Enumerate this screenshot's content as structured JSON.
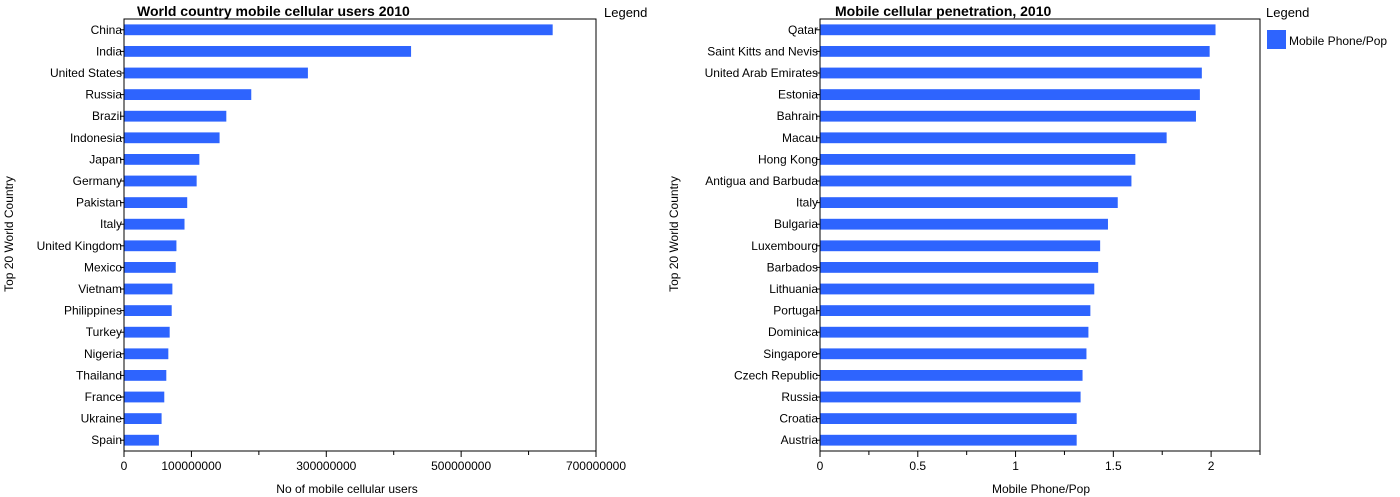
{
  "chart_data": [
    {
      "type": "bar",
      "orientation": "horizontal",
      "title": "World country mobile cellular users 2010",
      "xlabel": "No of mobile cellular users",
      "ylabel": "Top 20 World Country",
      "xlim": [
        0,
        700000000
      ],
      "x_tick_labels": [
        "0",
        "100000000",
        "300000000",
        "500000000",
        "700000000"
      ],
      "legend_title": "Legend",
      "bar_color": "#2e64fe",
      "categories": [
        "China",
        "India",
        "United States",
        "Russia",
        "Brazil",
        "Indonesia",
        "Japan",
        "Germany",
        "Pakistan",
        "Italy",
        "United Kingdom",
        "Mexico",
        "Vietnam",
        "Philippines",
        "Turkey",
        "Nigeria",
        "Thailand",
        "France",
        "Ukraine",
        "Spain"
      ],
      "values": [
        635000000,
        425000000,
        272000000,
        188000000,
        151000000,
        141000000,
        111000000,
        107000000,
        93000000,
        89000000,
        77000000,
        76000000,
        71000000,
        70000000,
        67000000,
        65000000,
        62000000,
        59000000,
        55000000,
        51000000
      ]
    },
    {
      "type": "bar",
      "orientation": "horizontal",
      "title": "Mobile cellular penetration, 2010",
      "xlabel": "Mobile Phone/Pop",
      "ylabel": "Top 20 World Country",
      "xlim": [
        0,
        2.25
      ],
      "x_tick_labels": [
        "0",
        "0.5",
        "1",
        "1.5",
        "2"
      ],
      "legend_title": "Legend",
      "legend_entries": [
        "Mobile Phone/Pop"
      ],
      "bar_color": "#2e64fe",
      "categories": [
        "Qatar",
        "Saint Kitts and Nevis",
        "United Arab Emirates",
        "Estonia",
        "Bahrain",
        "Macau",
        "Hong Kong",
        "Antigua and Barbuda",
        "Italy",
        "Bulgaria",
        "Luxembourg",
        "Barbados",
        "Lithuania",
        "Portugal",
        "Dominica",
        "Singapore",
        "Czech Republic",
        "Russia",
        "Croatia",
        "Austria"
      ],
      "values": [
        2.02,
        1.99,
        1.95,
        1.94,
        1.92,
        1.77,
        1.61,
        1.59,
        1.52,
        1.47,
        1.43,
        1.42,
        1.4,
        1.38,
        1.37,
        1.36,
        1.34,
        1.33,
        1.31,
        1.31
      ]
    }
  ]
}
